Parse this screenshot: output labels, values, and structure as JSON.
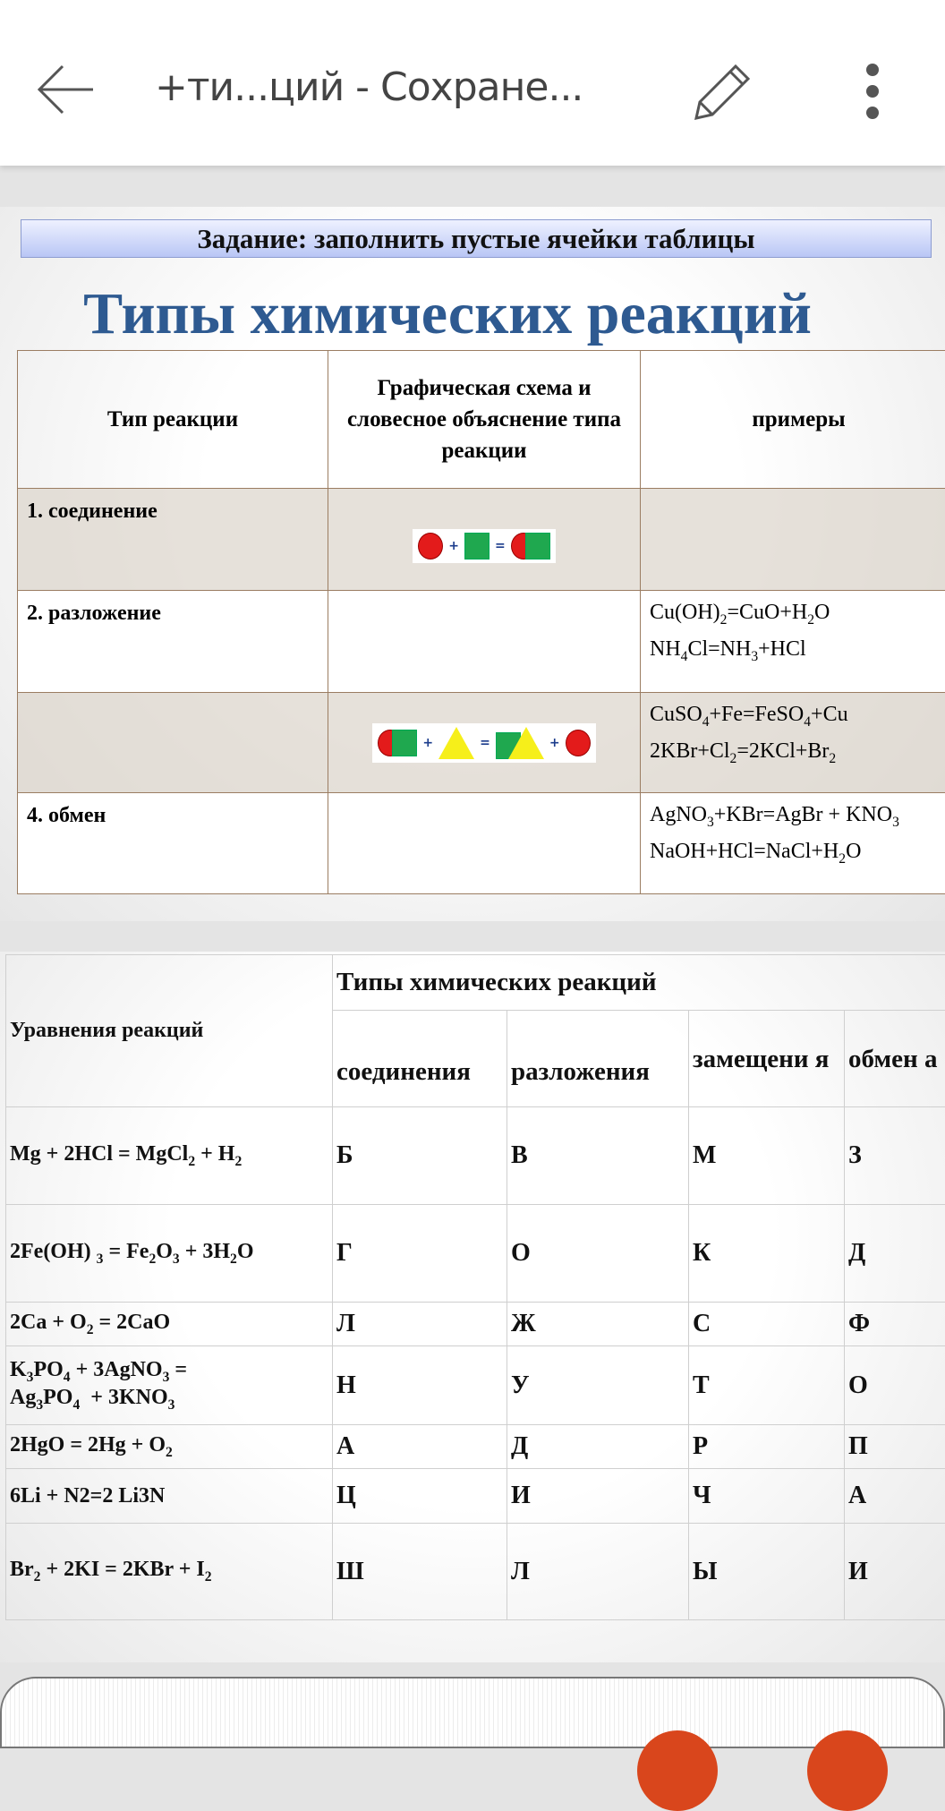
{
  "topbar": {
    "title": "+ти...ций - Сохране...",
    "icons": [
      "back-arrow-icon",
      "pencil-icon",
      "more-vertical-icon"
    ]
  },
  "slide1": {
    "task": "Задание: заполнить пустые ячейки таблицы",
    "title": "Типы химических реакций",
    "headers": [
      "Тип реакции",
      "Графическая схема и словесное объяснение типа реакции",
      "примеры"
    ],
    "rows": [
      {
        "type": "1. соединение",
        "scheme": "circle + square = circle-square",
        "examples_html": ""
      },
      {
        "type": "2. разложение",
        "scheme": "",
        "examples_html": "Cu(OH)<sub>2</sub>=CuO+H<sub>2</sub>O<br>NH<sub>4</sub>Cl=NH<sub>3</sub>+HCl"
      },
      {
        "type": "",
        "scheme": "circle-square + triangle = square-triangle + circle",
        "examples_html": "CuSO<sub>4</sub>+Fe=FeSO<sub>4</sub>+Cu<br>2KBr+Cl<sub>2</sub>=2KCl+Br<sub>2</sub>"
      },
      {
        "type": "4. обмен",
        "scheme": "",
        "examples_html": "AgNO<sub>3</sub>+KBr=AgBr + KNO<sub>3</sub><br>NaOH+HCl=NaCl+H<sub>2</sub>O"
      }
    ],
    "colors": {
      "title": "#2e5a91",
      "circle": "#e31b1b",
      "square": "#1fa84f",
      "triangle": "#f6ef1a"
    }
  },
  "slide2": {
    "row_header": "Уравнения реакций",
    "group_header": "Типы химических реакций",
    "col_headers": [
      "соединения",
      "разложения",
      "замещени я",
      "обмен а"
    ],
    "rows": [
      {
        "eq_html": "Mg + 2HCl = MgCl<sub>2</sub> + H<sub>2</sub>",
        "cells": [
          "Б",
          "В",
          "М",
          "З"
        ]
      },
      {
        "eq_html": "2Fe(OH) <sub>3</sub> = Fe<sub>2</sub>O<sub>3</sub> + 3H<sub>2</sub>O",
        "cells": [
          "Г",
          "О",
          "К",
          "Д"
        ]
      },
      {
        "eq_html": "2Ca + O<sub>2</sub> = 2CaO",
        "cells": [
          "Л",
          "Ж",
          "С",
          "Ф"
        ]
      },
      {
        "eq_html": "K<sub>3</sub>PO<sub>4</sub> + 3AgNO<sub>3</sub> =<br>Ag<sub>3</sub>PO<sub>4</sub> &nbsp;+ 3KNO<sub>3</sub>",
        "cells": [
          "Н",
          "У",
          "Т",
          "О"
        ]
      },
      {
        "eq_html": "2HgO = 2Hg + O<sub>2</sub>",
        "cells": [
          "А",
          "Д",
          "Р",
          "П"
        ]
      },
      {
        "eq_html": "6Li + N2=2 Li3N",
        "cells": [
          "Ц",
          "И",
          "Ч",
          "А"
        ]
      },
      {
        "eq_html": "Br<sub>2</sub> + 2KI = 2KBr + I<sub>2</sub>",
        "cells": [
          "Ш",
          "Л",
          "Ы",
          "И"
        ]
      }
    ]
  }
}
